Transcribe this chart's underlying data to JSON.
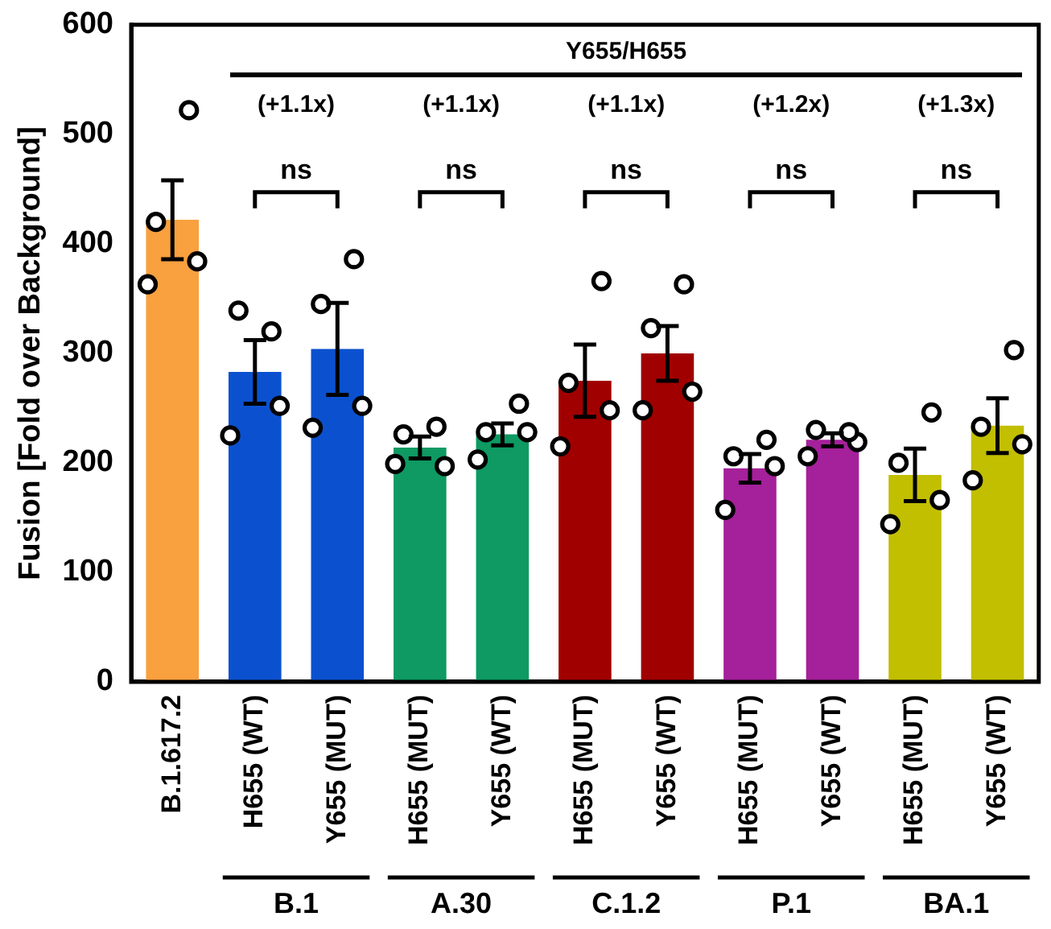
{
  "chart_data": {
    "type": "bar",
    "ylabel": "Fusion [Fold over Background]",
    "categories": [
      "B.1.617.2",
      "H655 (WT)",
      "Y655 (MUT)",
      "H655 (MUT)",
      "Y655 (WT)",
      "H655 (MUT)",
      "Y655 (WT)",
      "H655 (MUT)",
      "Y655 (WT)",
      "H655 (MUT)",
      "Y655 (WT)"
    ],
    "series": [
      {
        "colors": [
          "#f9a03f",
          "#0b51cf",
          "#0b51cf",
          "#0e9a62",
          "#0e9a62",
          "#a00000",
          "#a00000",
          "#a5209b",
          "#a5209b",
          "#c2be00",
          "#c2be00"
        ],
        "values": [
          422,
          283,
          304,
          214,
          226,
          275,
          300,
          195,
          221,
          189,
          234
        ],
        "errors": [
          36,
          29,
          42,
          10,
          10,
          33,
          25,
          13,
          6,
          24,
          25
        ]
      },
      {
        "type": "scatter",
        "color": "#000000",
        "values": [
          522,
          320,
          386,
          233,
          254,
          366,
          363,
          221,
          228,
          246,
          303
        ]
      },
      {
        "type": "scatter",
        "color": "#000000",
        "values": [
          420,
          339,
          345,
          226,
          228,
          273,
          323,
          206,
          230,
          200,
          233
        ]
      },
      {
        "type": "scatter",
        "color": "#000000",
        "values": [
          384,
          252,
          252,
          197,
          228,
          248,
          265,
          197,
          219,
          166,
          217
        ]
      },
      {
        "type": "scatter",
        "color": "#000000",
        "values": [
          363,
          225,
          232,
          199,
          203,
          215,
          248,
          157,
          206,
          144,
          184
        ]
      }
    ],
    "marker": "circle",
    "ylim": [
      0,
      600
    ],
    "yticks": [
      0,
      100,
      200,
      300,
      400,
      500,
      600
    ],
    "grid": false,
    "legend": false,
    "annotations": [
      "Y655/H655",
      "(+1.1x)",
      "(+1.1x)",
      "(+1.1x)",
      "(+1.2x)",
      "(+1.3x)",
      "ns",
      "ns",
      "ns",
      "ns",
      "ns",
      "B.1",
      "A.30",
      "C.1.2",
      "P.1",
      "BA.1"
    ]
  }
}
